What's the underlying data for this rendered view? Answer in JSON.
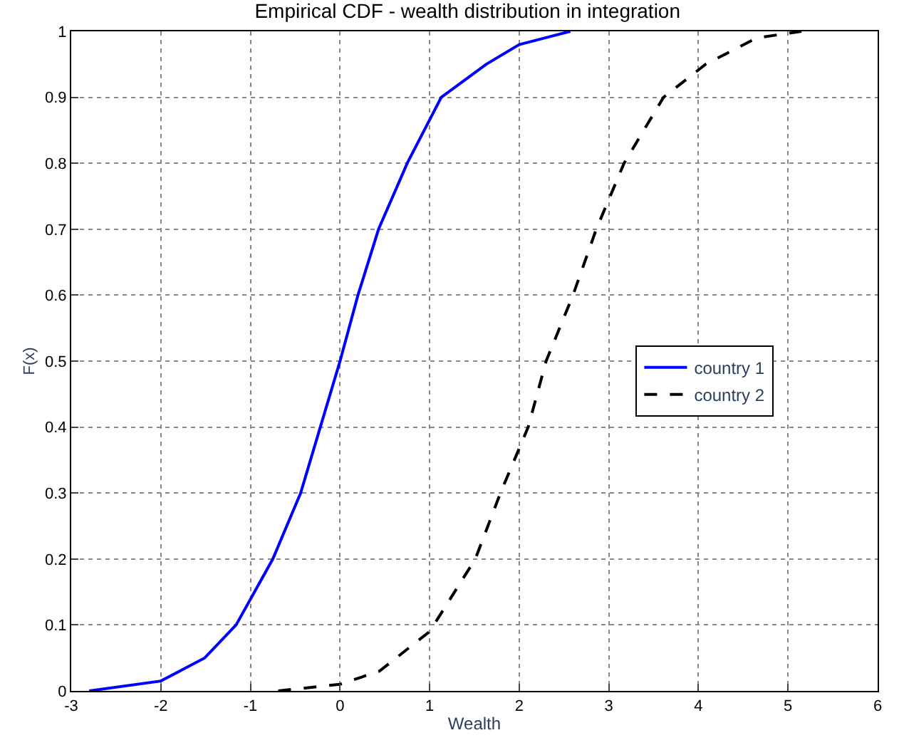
{
  "chart_data": {
    "type": "line",
    "title": "Empirical CDF - wealth distribution in integration",
    "xlabel": "Wealth",
    "ylabel": "F(x)",
    "xlim": [
      -3,
      6
    ],
    "xticks": [
      -3,
      -2,
      -1,
      0,
      1,
      2,
      3,
      4,
      5,
      6
    ],
    "ylim": [
      0,
      1
    ],
    "yticks": [
      0,
      0.1,
      0.2,
      0.3,
      0.4,
      0.5,
      0.6,
      0.7,
      0.8,
      0.9,
      1
    ],
    "grid": true,
    "legend": "right",
    "series": [
      {
        "name": "country 1",
        "color": "#0000ff",
        "line_style": "solid",
        "x": [
          -2.8,
          -2.0,
          -1.51,
          -1.16,
          -0.75,
          -0.44,
          -0.22,
          0.0,
          0.2,
          0.43,
          0.75,
          1.13,
          1.63,
          2.0,
          2.57
        ],
        "values": [
          0,
          0.015,
          0.05,
          0.1,
          0.2,
          0.3,
          0.4,
          0.5,
          0.6,
          0.7,
          0.8,
          0.9,
          0.95,
          0.98,
          1
        ]
      },
      {
        "name": "country 2",
        "color": "#000000",
        "line_style": "dashed",
        "x": [
          -0.69,
          0,
          0.44,
          1.0,
          1.51,
          1.79,
          2.1,
          2.3,
          2.6,
          2.86,
          3.17,
          3.61,
          4.08,
          4.65,
          5.15
        ],
        "values": [
          0,
          0.01,
          0.03,
          0.09,
          0.2,
          0.3,
          0.4,
          0.5,
          0.6,
          0.7,
          0.8,
          0.9,
          0.95,
          0.99,
          1
        ]
      }
    ]
  }
}
